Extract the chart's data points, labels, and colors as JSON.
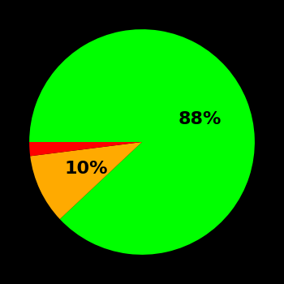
{
  "slices": [
    88,
    10,
    2
  ],
  "colors": [
    "#00ff00",
    "#ffaa00",
    "#ff0000"
  ],
  "labels": [
    "88%",
    "10%",
    ""
  ],
  "background_color": "#000000",
  "text_color": "#000000",
  "label_fontsize": 16,
  "startangle": 180,
  "counterclock": false,
  "label_dist_green": 0.55,
  "label_dist_yellow": 0.55,
  "figsize": [
    3.5,
    3.5
  ],
  "dpi": 100
}
